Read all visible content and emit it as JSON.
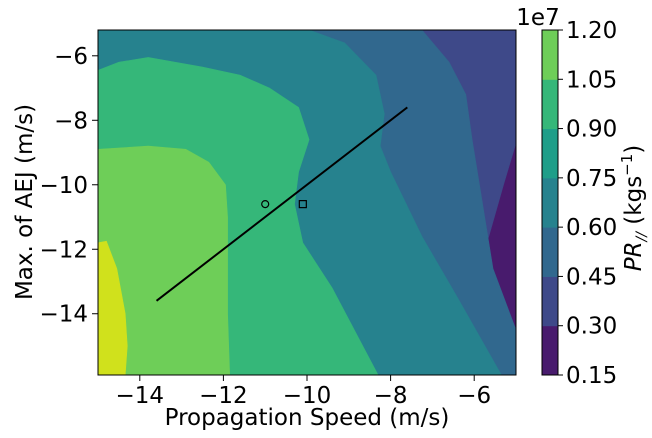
{
  "chart_data": {
    "type": "contour",
    "xlabel": "Propagation Speed (m/s)",
    "ylabel": "Max. of AEJ (m/s)",
    "xlim": [
      -15,
      -5
    ],
    "ylim": [
      -15.9,
      -5.2
    ],
    "xticks": [
      -14,
      -12,
      -10,
      -8,
      -6
    ],
    "yticks": [
      -14,
      -12,
      -10,
      -8,
      -6
    ],
    "xtick_labels": [
      "−14",
      "−12",
      "−10",
      "−8",
      "−6"
    ],
    "ytick_labels": [
      "−14",
      "−12",
      "−10",
      "−8",
      "−6"
    ],
    "colorbar": {
      "label_main": "PR",
      "label_sub": "//",
      "label_unit_open": " (kgs",
      "label_unit_sup": "−1",
      "label_unit_close": ")",
      "offset_text": "1e7",
      "levels": [
        0.15,
        0.3,
        0.45,
        0.6,
        0.75,
        0.9,
        1.05,
        1.2
      ],
      "tick_labels": [
        "0.15",
        "0.30",
        "0.45",
        "0.60",
        "0.75",
        "0.90",
        "1.05",
        "1.20"
      ],
      "colors": [
        "#481b6d",
        "#3e4989",
        "#31688e",
        "#26828e",
        "#1f9e89",
        "#35b779",
        "#6ece58",
        "#d0e11c"
      ]
    },
    "contour_bands": [
      {
        "level_range": [
          1.05,
          1.2
        ],
        "color": "#d0e11c",
        "boundary": [
          [
            -15.0,
            -15.9
          ],
          [
            -14.35,
            -15.9
          ],
          [
            -14.3,
            -15.0
          ],
          [
            -14.35,
            -14.0
          ],
          [
            -14.55,
            -12.6
          ],
          [
            -14.8,
            -11.75
          ],
          [
            -15.0,
            -11.8
          ]
        ]
      },
      {
        "level_range": [
          0.9,
          1.05
        ],
        "color": "#6ece58",
        "boundary": [
          [
            -15.0,
            -8.9
          ],
          [
            -13.8,
            -8.8
          ],
          [
            -12.9,
            -8.9
          ],
          [
            -12.35,
            -9.3
          ],
          [
            -11.95,
            -10.0
          ],
          [
            -11.9,
            -11.0
          ],
          [
            -11.9,
            -12.5
          ],
          [
            -11.9,
            -14.0
          ],
          [
            -11.85,
            -15.9
          ],
          [
            -15.0,
            -15.9
          ]
        ]
      },
      {
        "level_range": [
          0.75,
          0.9
        ],
        "color": "#35b779",
        "boundary": [
          [
            -15.0,
            -6.45
          ],
          [
            -14.5,
            -6.2
          ],
          [
            -13.8,
            -6.05
          ],
          [
            -12.5,
            -6.35
          ],
          [
            -11.6,
            -6.6
          ],
          [
            -10.9,
            -7.0
          ],
          [
            -10.2,
            -7.6
          ],
          [
            -9.95,
            -8.6
          ],
          [
            -10.2,
            -9.6
          ],
          [
            -10.3,
            -10.6
          ],
          [
            -10.1,
            -11.8
          ],
          [
            -9.4,
            -13.2
          ],
          [
            -8.3,
            -15.9
          ],
          [
            -15.0,
            -15.9
          ]
        ]
      },
      {
        "level_range": [
          0.6,
          0.75
        ],
        "color": "#26828e",
        "boundary": [
          [
            -15.0,
            -5.2
          ],
          [
            -9.95,
            -5.2
          ],
          [
            -9.1,
            -5.6
          ],
          [
            -8.35,
            -6.6
          ],
          [
            -8.15,
            -7.8
          ],
          [
            -8.25,
            -8.8
          ],
          [
            -8.0,
            -9.6
          ],
          [
            -7.25,
            -11.6
          ],
          [
            -6.4,
            -13.5
          ],
          [
            -5.35,
            -15.9
          ],
          [
            -15.0,
            -15.9
          ]
        ]
      },
      {
        "level_range": [
          0.45,
          0.6
        ],
        "color": "#31688e",
        "boundary": [
          [
            -15.0,
            -5.2
          ],
          [
            -7.25,
            -5.2
          ],
          [
            -6.6,
            -6.2
          ],
          [
            -6.2,
            -7.2
          ],
          [
            -6.05,
            -8.6
          ],
          [
            -5.85,
            -10.2
          ],
          [
            -5.55,
            -12.6
          ],
          [
            -5.0,
            -14.5
          ],
          [
            -5.0,
            -15.9
          ],
          [
            -15.0,
            -15.9
          ]
        ]
      },
      {
        "level_range": [
          0.3,
          0.45
        ],
        "color": "#3e4989",
        "boundary": [
          [
            -15.0,
            -5.2
          ],
          [
            -5.0,
            -5.2
          ],
          [
            -5.0,
            -8.7
          ],
          [
            -5.3,
            -10.0
          ],
          [
            -5.65,
            -11.6
          ],
          [
            -5.9,
            -12.4
          ],
          [
            -6.3,
            -13.6
          ],
          [
            -6.45,
            -14.4
          ],
          [
            -6.55,
            -15.9
          ],
          [
            -15.0,
            -15.9
          ]
        ]
      },
      {
        "level_range": [
          0.15,
          0.3
        ],
        "color": "#481b6d",
        "boundary": [
          [
            -15.0,
            -15.9
          ],
          [
            -15.0,
            -5.2
          ],
          [
            -5.0,
            -5.2
          ],
          [
            -5.0,
            -15.9
          ]
        ]
      }
    ],
    "lines": [
      {
        "points": [
          [
            -13.6,
            -13.6
          ],
          [
            -7.6,
            -7.6
          ]
        ],
        "color": "#000000"
      }
    ],
    "markers": [
      {
        "shape": "circle",
        "x": -11.0,
        "y": -10.6
      },
      {
        "shape": "square",
        "x": -10.1,
        "y": -10.6
      }
    ]
  }
}
